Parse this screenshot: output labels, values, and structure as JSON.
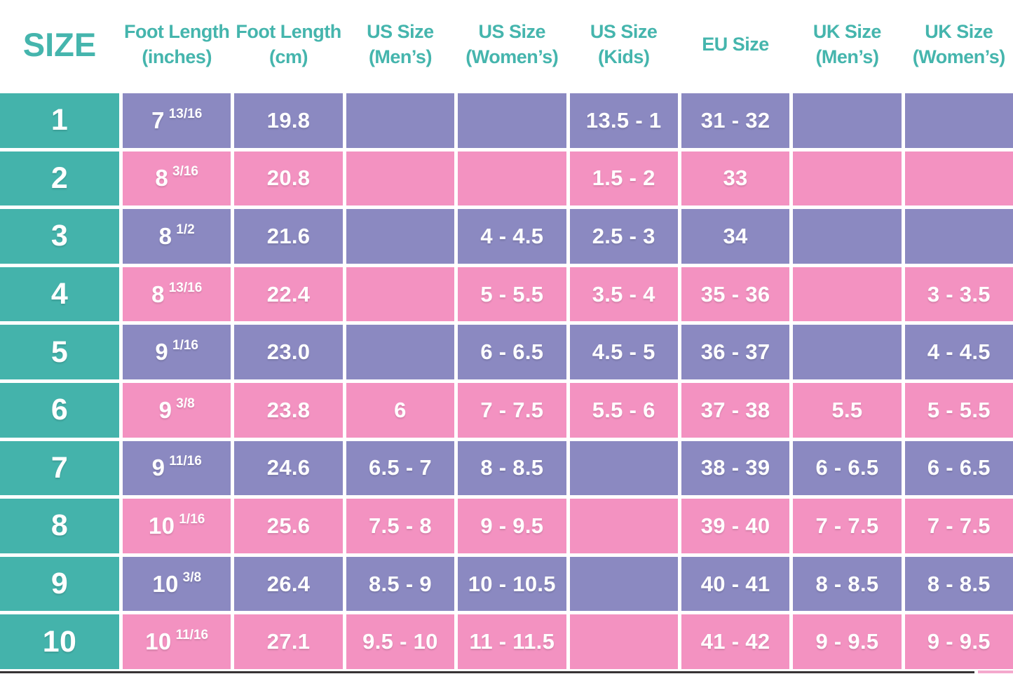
{
  "colors": {
    "teal": "#44b3ab",
    "purple": "#8b89c1",
    "pink": "#f392c1",
    "header_text": "#45b5ad",
    "cell_text": "#ffffff",
    "background": "#ffffff",
    "bottom_bar": "#363233"
  },
  "chart_data": {
    "type": "table",
    "header": {
      "size": "SIZE",
      "cols": [
        {
          "line1": "Foot Length",
          "line2": "(inches)"
        },
        {
          "line1": "Foot Length",
          "line2": "(cm)"
        },
        {
          "line1": "US Size",
          "line2": "(Men’s)"
        },
        {
          "line1": "US Size",
          "line2": "(Women’s)"
        },
        {
          "line1": "US Size",
          "line2": "(Kids)"
        },
        {
          "line1": "EU Size",
          "line2": ""
        },
        {
          "line1": "UK Size",
          "line2": "(Men’s)"
        },
        {
          "line1": "UK Size",
          "line2": "(Women’s)"
        }
      ]
    },
    "rows": [
      {
        "size": "1",
        "inches_whole": "7",
        "inches_frac": "13/16",
        "cm": "19.8",
        "us_men": "",
        "us_women": "",
        "us_kids": "13.5 - 1",
        "eu": "31 - 32",
        "uk_men": "",
        "uk_women": ""
      },
      {
        "size": "2",
        "inches_whole": "8",
        "inches_frac": "3/16",
        "cm": "20.8",
        "us_men": "",
        "us_women": "",
        "us_kids": "1.5 - 2",
        "eu": "33",
        "uk_men": "",
        "uk_women": ""
      },
      {
        "size": "3",
        "inches_whole": "8",
        "inches_frac": "1/2",
        "cm": "21.6",
        "us_men": "",
        "us_women": "4 - 4.5",
        "us_kids": "2.5 - 3",
        "eu": "34",
        "uk_men": "",
        "uk_women": ""
      },
      {
        "size": "4",
        "inches_whole": "8",
        "inches_frac": "13/16",
        "cm": "22.4",
        "us_men": "",
        "us_women": "5 - 5.5",
        "us_kids": "3.5 - 4",
        "eu": "35 - 36",
        "uk_men": "",
        "uk_women": "3 - 3.5"
      },
      {
        "size": "5",
        "inches_whole": "9",
        "inches_frac": "1/16",
        "cm": "23.0",
        "us_men": "",
        "us_women": "6 - 6.5",
        "us_kids": "4.5 - 5",
        "eu": "36 - 37",
        "uk_men": "",
        "uk_women": "4 - 4.5"
      },
      {
        "size": "6",
        "inches_whole": "9",
        "inches_frac": "3/8",
        "cm": "23.8",
        "us_men": "6",
        "us_women": "7 - 7.5",
        "us_kids": "5.5 - 6",
        "eu": "37 - 38",
        "uk_men": "5.5",
        "uk_women": "5 - 5.5"
      },
      {
        "size": "7",
        "inches_whole": "9",
        "inches_frac": "11/16",
        "cm": "24.6",
        "us_men": "6.5 - 7",
        "us_women": "8 - 8.5",
        "us_kids": "",
        "eu": "38 - 39",
        "uk_men": "6 - 6.5",
        "uk_women": "6 - 6.5"
      },
      {
        "size": "8",
        "inches_whole": "10",
        "inches_frac": "1/16",
        "cm": "25.6",
        "us_men": "7.5 - 8",
        "us_women": "9 - 9.5",
        "us_kids": "",
        "eu": "39 - 40",
        "uk_men": "7 - 7.5",
        "uk_women": "7 - 7.5"
      },
      {
        "size": "9",
        "inches_whole": "10",
        "inches_frac": "3/8",
        "cm": "26.4",
        "us_men": "8.5 - 9",
        "us_women": "10 - 10.5",
        "us_kids": "",
        "eu": "40 - 41",
        "uk_men": "8 - 8.5",
        "uk_women": "8 - 8.5"
      },
      {
        "size": "10",
        "inches_whole": "10",
        "inches_frac": "11/16",
        "cm": "27.1",
        "us_men": "9.5 - 10",
        "us_women": "11 - 11.5",
        "us_kids": "",
        "eu": "41 - 42",
        "uk_men": "9 - 9.5",
        "uk_women": "9 - 9.5"
      }
    ]
  }
}
